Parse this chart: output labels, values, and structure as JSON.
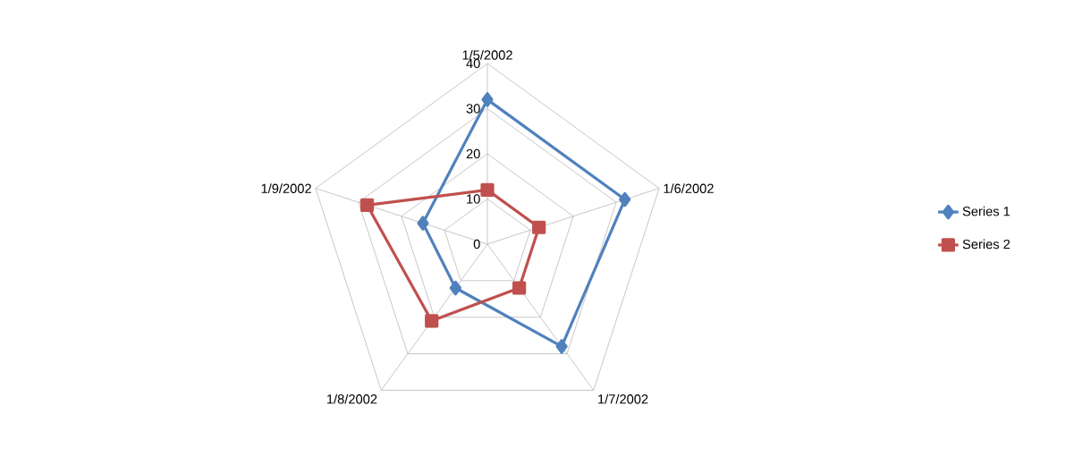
{
  "chart_data": {
    "type": "radar",
    "categories": [
      "1/5/2002",
      "1/6/2002",
      "1/7/2002",
      "1/8/2002",
      "1/9/2002"
    ],
    "series": [
      {
        "name": "Series 1",
        "color": "#4f81bd",
        "marker": "diamond",
        "values": [
          32,
          32,
          28,
          12,
          15
        ]
      },
      {
        "name": "Series 2",
        "color": "#c0504d",
        "marker": "square",
        "values": [
          12,
          12,
          12,
          21,
          28
        ]
      }
    ],
    "ylim": [
      0,
      40
    ],
    "yticks": [
      0,
      10,
      20,
      30,
      40
    ],
    "grid": true,
    "legend": "right"
  }
}
